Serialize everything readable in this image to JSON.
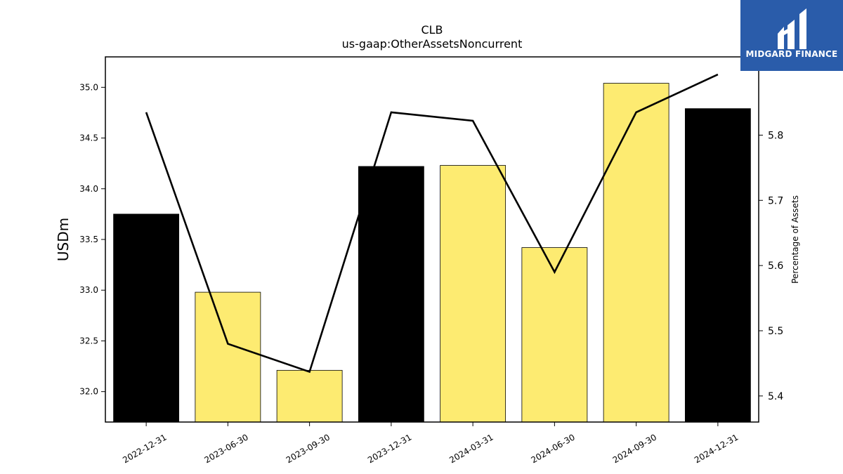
{
  "chart_data": {
    "type": "bar",
    "title": "CLB",
    "subtitle": "us-gaap:OtherAssetsNoncurrent",
    "ylabel": "USDm",
    "y2label": "Percentage of Assets",
    "categories": [
      "2022-12-31",
      "2023-06-30",
      "2023-09-30",
      "2023-12-31",
      "2024-03-31",
      "2024-06-30",
      "2024-09-30",
      "2024-12-31"
    ],
    "values": [
      33.75,
      32.98,
      32.21,
      34.22,
      34.23,
      33.42,
      35.04,
      34.79
    ],
    "bar_colors": [
      "#000000",
      "#fdeb71",
      "#fdeb71",
      "#000000",
      "#fdeb71",
      "#fdeb71",
      "#fdeb71",
      "#000000"
    ],
    "line_values": [
      5.835,
      5.48,
      5.437,
      5.835,
      5.822,
      5.59,
      5.835,
      5.893
    ],
    "ylim": [
      31.7,
      35.3
    ],
    "y_ticks": [
      "32.0",
      "32.5",
      "33.0",
      "33.5",
      "34.0",
      "34.5",
      "35.0"
    ],
    "y2lim": [
      5.36,
      5.92
    ],
    "y2_ticks": [
      "5.4",
      "5.5",
      "5.6",
      "5.7",
      "5.8"
    ],
    "grid": false
  },
  "logo": {
    "text": "MIDGARD FINANCE",
    "bg": "#2a5caa"
  }
}
